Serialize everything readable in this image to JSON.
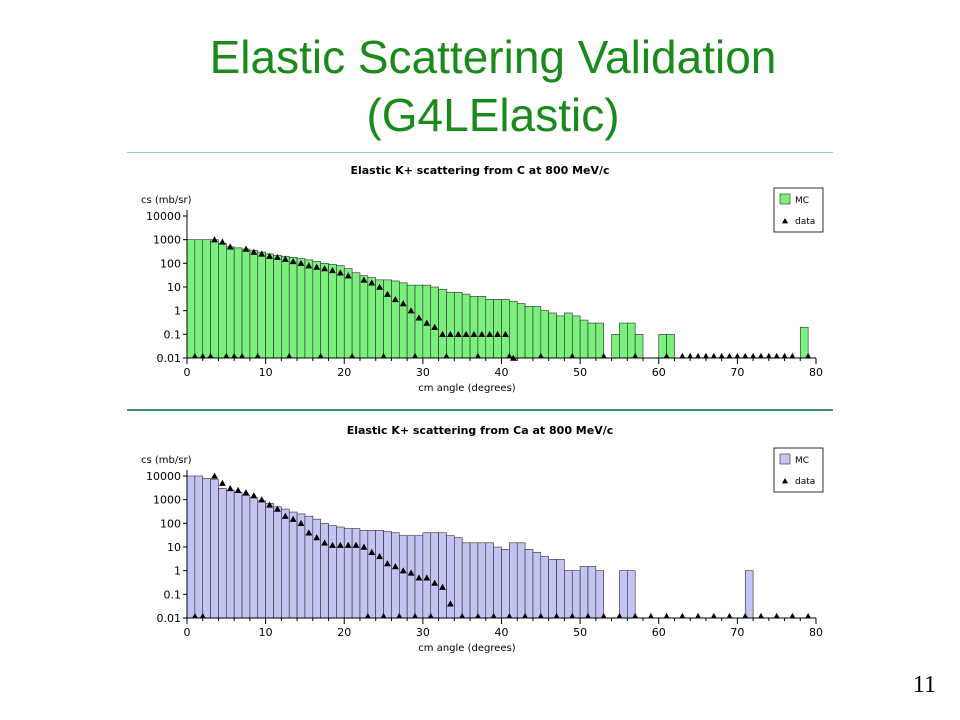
{
  "slide": {
    "title_line1": "Elastic Scattering Validation",
    "title_line2": "(G4LElastic)",
    "page_number": "11"
  },
  "chart_data": [
    {
      "type": "bar",
      "title": "Elastic K+ scattering from C at 800 MeV/c",
      "xlabel": "cm angle (degrees)",
      "ylabel": "cs (mb/sr)",
      "y_scale": "log",
      "xlim": [
        0,
        80
      ],
      "ylim": [
        0.01,
        10000
      ],
      "xticks": [
        "0",
        "10",
        "20",
        "30",
        "40",
        "50",
        "60",
        "70",
        "80"
      ],
      "yticks": [
        "0.01",
        "0.1",
        "1",
        "10",
        "100",
        "1000",
        "10000"
      ],
      "grid": false,
      "legend_position": "top-right",
      "mc_color": "#7cf07c",
      "series": [
        {
          "name": "MC",
          "kind": "histogram",
          "bin_width": 1,
          "x_start": 0,
          "values": [
            1000,
            1000,
            1000,
            1000,
            700,
            500,
            450,
            400,
            350,
            300,
            250,
            220,
            200,
            180,
            160,
            140,
            120,
            100,
            90,
            80,
            60,
            40,
            30,
            25,
            20,
            20,
            18,
            15,
            12,
            12,
            12,
            10,
            8,
            6,
            6,
            5,
            4,
            4,
            3,
            3,
            3,
            2.5,
            2,
            1.5,
            1.5,
            1,
            0.8,
            0.6,
            0.8,
            0.6,
            0.4,
            0.3,
            0.3,
            0.01,
            0.1,
            0.3,
            0.3,
            0.1,
            0.01,
            0.01,
            0.1,
            0.1,
            0.01,
            0.01,
            0.01,
            0.01,
            0.01,
            0.01,
            0.01,
            0.01,
            0.01,
            0.01,
            0.01,
            0.01,
            0.01,
            0.01,
            0.01,
            0.01,
            0.2,
            0.01
          ]
        },
        {
          "name": "data",
          "kind": "points",
          "x": [
            3.5,
            4.5,
            5.5,
            7.5,
            8.5,
            9.5,
            10.5,
            11.5,
            12.5,
            13.5,
            14.5,
            15.5,
            16.5,
            17.5,
            18.5,
            19.5,
            20.5,
            22.5,
            23.5,
            24.5,
            25.5,
            26.5,
            27.5,
            28.5,
            29.5,
            30.5,
            31.5,
            32.5,
            33.5,
            34.5,
            35.5,
            36.5,
            37.5,
            38.5,
            39.5,
            40.5,
            41.5
          ],
          "y": [
            1000,
            800,
            500,
            400,
            300,
            250,
            200,
            180,
            150,
            120,
            100,
            80,
            70,
            60,
            50,
            40,
            30,
            20,
            15,
            10,
            5,
            3,
            2,
            1,
            0.5,
            0.3,
            0.2,
            0.1,
            0.1,
            0.1,
            0.1,
            0.1,
            0.1,
            0.1,
            0.1,
            0.1,
            0.01
          ]
        }
      ],
      "data_baseline_x": [
        1,
        2,
        3,
        5,
        6,
        7,
        9,
        13,
        17,
        21,
        25,
        29,
        33,
        37,
        41,
        45,
        49,
        53,
        57,
        61,
        63,
        64,
        65,
        66,
        67,
        68,
        69,
        70,
        71,
        72,
        73,
        74,
        75,
        76,
        77,
        79
      ]
    },
    {
      "type": "bar",
      "title": "Elastic K+ scattering from Ca at 800 MeV/c",
      "xlabel": "cm angle (degrees)",
      "ylabel": "cs (mb/sr)",
      "y_scale": "log",
      "xlim": [
        0,
        80
      ],
      "ylim": [
        0.01,
        10000
      ],
      "xticks": [
        "0",
        "10",
        "20",
        "30",
        "40",
        "50",
        "60",
        "70",
        "80"
      ],
      "yticks": [
        "0.01",
        "0.1",
        "1",
        "10",
        "100",
        "1000",
        "10000"
      ],
      "grid": false,
      "legend_position": "top-right",
      "mc_color": "#c4c4f4",
      "series": [
        {
          "name": "MC",
          "kind": "histogram",
          "bin_width": 1,
          "x_start": 0,
          "values": [
            10000,
            10000,
            8000,
            7000,
            3000,
            2500,
            2000,
            1500,
            1200,
            900,
            700,
            500,
            400,
            300,
            250,
            200,
            150,
            100,
            80,
            70,
            60,
            60,
            50,
            50,
            50,
            45,
            40,
            30,
            30,
            30,
            40,
            40,
            40,
            30,
            25,
            15,
            15,
            15,
            15,
            10,
            8,
            15,
            15,
            8,
            6,
            4,
            3,
            3,
            1,
            1,
            1.5,
            1.5,
            1,
            0.01,
            0.01,
            1,
            1,
            0.01,
            0.01,
            0.01,
            0.01,
            0.01,
            0.01,
            0.01,
            0.01,
            0.01,
            0.01,
            0.01,
            0.01,
            0.01,
            0.01,
            1,
            0.01,
            0.01,
            0.01,
            0.01,
            0.01,
            0.01,
            0.01,
            0.01
          ]
        },
        {
          "name": "data",
          "kind": "points",
          "x": [
            3.5,
            4.5,
            5.5,
            6.5,
            7.5,
            8.5,
            9.5,
            10.5,
            11.5,
            12.5,
            13.5,
            14.5,
            15.5,
            16.5,
            17.5,
            18.5,
            19.5,
            20.5,
            21.5,
            22.5,
            23.5,
            24.5,
            25.5,
            26.5,
            27.5,
            28.5,
            29.5,
            30.5,
            31.5,
            32.5,
            33.5
          ],
          "y": [
            10000,
            5000,
            3000,
            2500,
            2000,
            1500,
            1000,
            600,
            400,
            200,
            150,
            100,
            40,
            25,
            15,
            12,
            12,
            12,
            12,
            10,
            6,
            4,
            2,
            1.5,
            1,
            0.8,
            0.5,
            0.5,
            0.3,
            0.2,
            0.04
          ]
        }
      ],
      "data_baseline_x": [
        1,
        2,
        23,
        25,
        27,
        29,
        31,
        35,
        37,
        39,
        41,
        43,
        45,
        47,
        49,
        51,
        53,
        55,
        57,
        59,
        61,
        63,
        65,
        67,
        69,
        71,
        73,
        75,
        77,
        79
      ]
    }
  ]
}
